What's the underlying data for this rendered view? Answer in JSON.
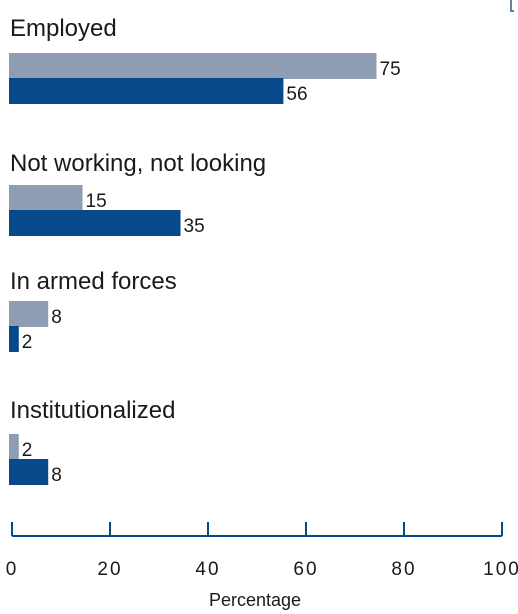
{
  "chart_data": {
    "type": "bar",
    "orientation": "horizontal",
    "categories": [
      "Employed",
      "Not working, not looking",
      "In armed forces",
      "Institutionalized"
    ],
    "series": [
      {
        "values": [
          75,
          15,
          8,
          2
        ],
        "color": "#8f9db4"
      },
      {
        "values": [
          56,
          35,
          2,
          8
        ],
        "color": "#074989"
      }
    ],
    "xlim": [
      0,
      100
    ],
    "x_ticks": [
      "0",
      "20",
      "40",
      "60",
      "80",
      "100"
    ],
    "xlabel": "Percentage",
    "grid": false,
    "legend": "none",
    "axis_color": "#074989"
  }
}
